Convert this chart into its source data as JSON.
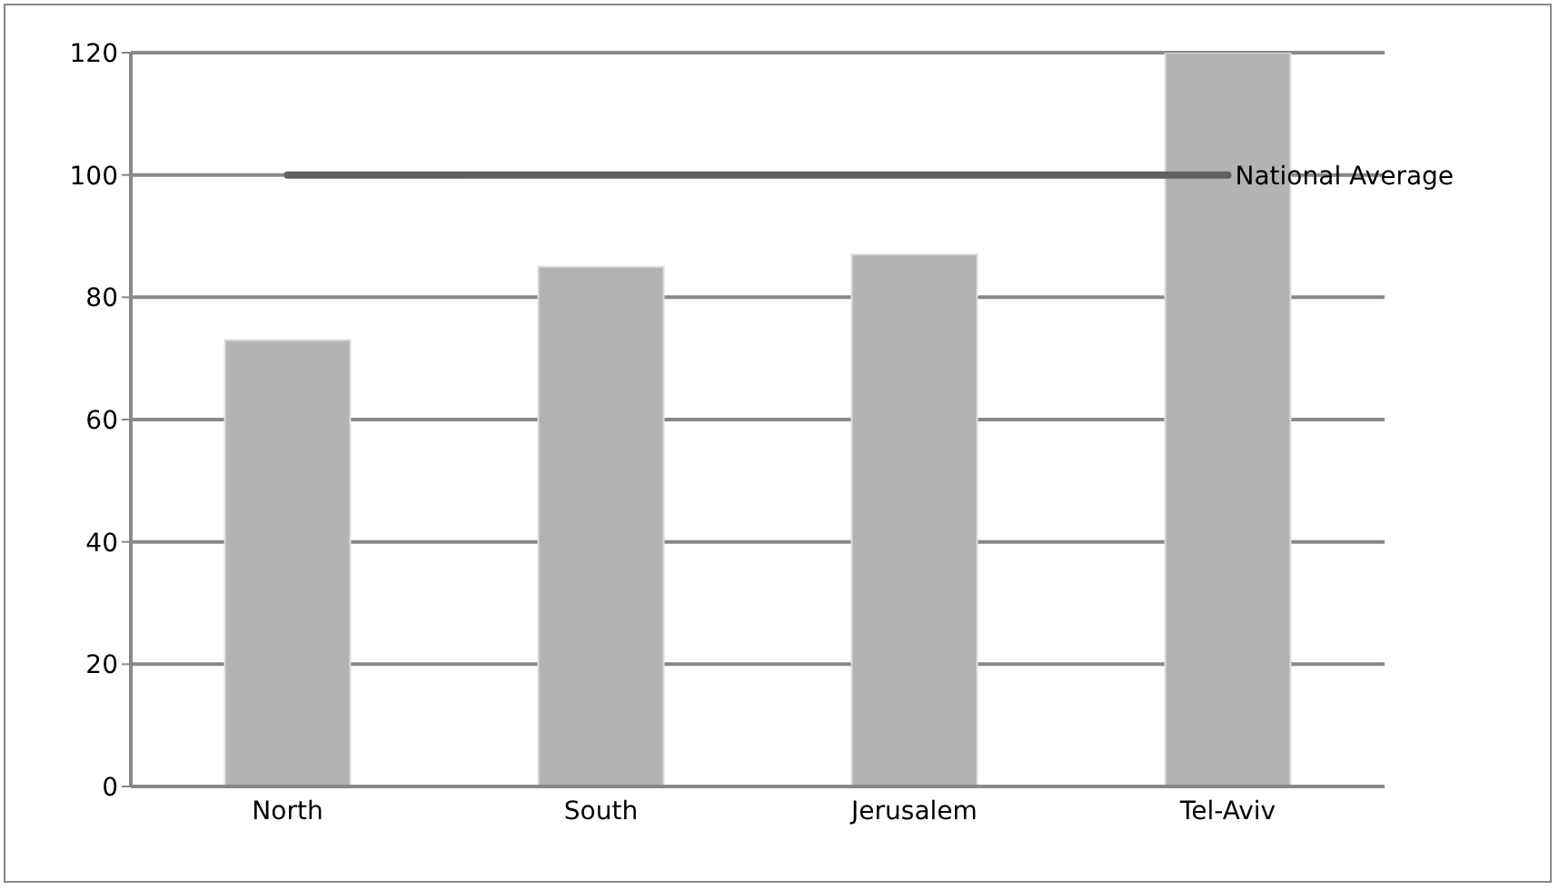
{
  "chart_data": {
    "type": "bar",
    "categories": [
      "North",
      "South",
      "Jerusalem",
      "Tel-Aviv"
    ],
    "series": [
      {
        "color": "#b3b3b3",
        "values": [
          73,
          85,
          87,
          120
        ]
      },
      {
        "type": "line",
        "name": "National Average",
        "color": "#606060",
        "values": [
          100,
          100,
          100,
          100
        ]
      }
    ],
    "ylim": [
      0,
      120
    ],
    "yticks": [
      0,
      20,
      40,
      60,
      80,
      100,
      120
    ],
    "grid": "y"
  }
}
